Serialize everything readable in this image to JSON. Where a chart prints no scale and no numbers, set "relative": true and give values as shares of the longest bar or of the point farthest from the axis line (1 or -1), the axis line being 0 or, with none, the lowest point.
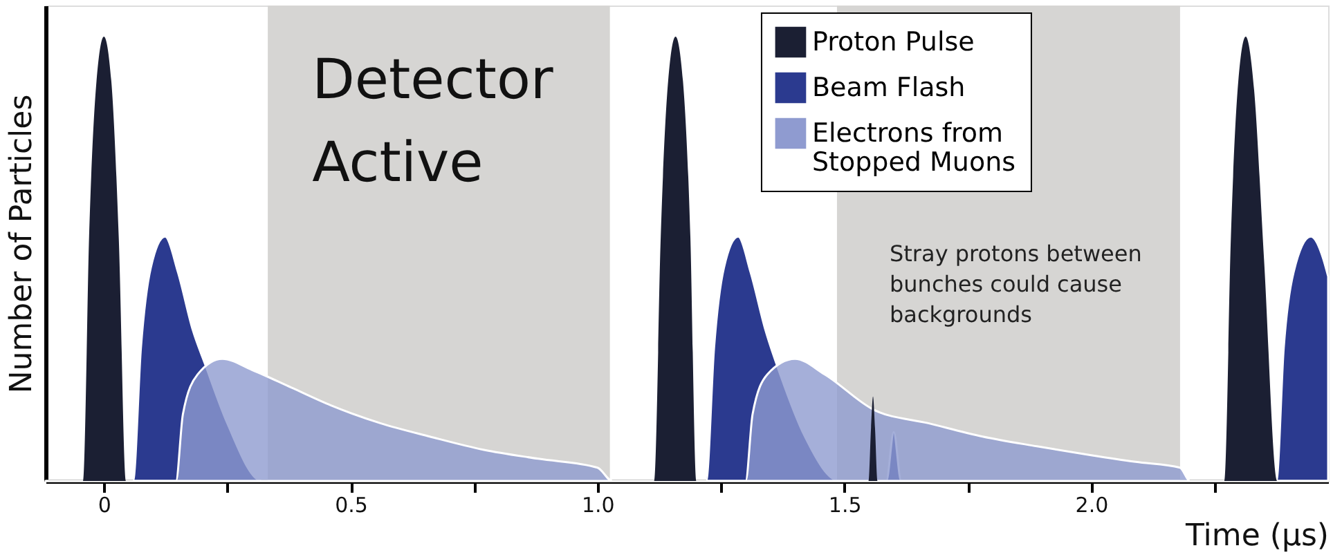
{
  "chart_data": {
    "type": "area",
    "relative": true,
    "xlabel": "Time (µs)",
    "ylabel": "Number of Particles",
    "xlim": [
      -0.118,
      2.48
    ],
    "xticks": [
      0,
      {
        "value": 0.25,
        "label": null
      },
      0.5,
      {
        "value": 0.75,
        "label": null
      },
      {
        "value": 1.0,
        "label": "1.0"
      },
      {
        "value": 1.25,
        "label": null
      },
      1.5,
      {
        "value": 1.75,
        "label": null
      },
      {
        "value": 2.0,
        "label": "2.0"
      },
      {
        "value": 2.25,
        "label": null
      }
    ],
    "tick_labels": "x",
    "grid": false,
    "legend": "top right",
    "series": [
      {
        "name": "Proton Pulse",
        "color": "#1b1f33",
        "x": [
          -0.118,
          -0.042,
          -0.03,
          -0.015,
          0,
          0.015,
          0.03,
          0.045,
          1.115,
          1.128,
          1.143,
          1.158,
          1.173,
          1.188,
          1.2,
          1.549,
          1.554,
          1.558,
          1.562,
          1.567,
          2.27,
          2.283,
          2.298,
          2.313,
          2.33,
          2.35,
          2.377,
          2.48
        ],
        "values": [
          0,
          0,
          0.55,
          0.9,
          1,
          0.9,
          0.55,
          0,
          0,
          0.55,
          0.9,
          1,
          0.9,
          0.55,
          0,
          0,
          0.12,
          0.19,
          0.12,
          0,
          0,
          0.55,
          0.9,
          1,
          0.88,
          0.5,
          0,
          0
        ]
      },
      {
        "name": "Beam Flash",
        "color": "#2b3a8f",
        "x": [
          -0.118,
          0.059,
          0.075,
          0.095,
          0.124,
          0.15,
          0.18,
          0.206,
          0.25,
          0.32,
          1.22,
          1.236,
          1.256,
          1.285,
          1.31,
          1.34,
          1.37,
          1.42,
          1.49,
          1.585,
          1.6,
          1.615,
          2.375,
          2.39,
          2.41,
          2.445,
          2.47,
          2.48
        ],
        "values": [
          0,
          0,
          0.3,
          0.48,
          0.55,
          0.47,
          0.34,
          0.26,
          0.13,
          0,
          0,
          0.3,
          0.48,
          0.55,
          0.47,
          0.34,
          0.24,
          0.1,
          0,
          0,
          0.11,
          0,
          0,
          0.3,
          0.47,
          0.55,
          0.5,
          0.46
        ]
      },
      {
        "name": "Electrons from Stopped Muons",
        "color": "#8f9bd0",
        "x": [
          -0.118,
          0.146,
          0.16,
          0.19,
          0.24,
          0.3,
          0.38,
          0.46,
          0.56,
          0.66,
          0.77,
          0.88,
          1.0,
          1.03,
          1.3,
          1.314,
          1.344,
          1.4,
          1.46,
          1.56,
          1.67,
          1.78,
          1.89,
          2.0,
          2.09,
          2.18,
          2.2,
          2.48
        ],
        "values": [
          0,
          0,
          0.15,
          0.24,
          0.275,
          0.25,
          0.21,
          0.17,
          0.13,
          0.1,
          0.07,
          0.05,
          0.03,
          0,
          0,
          0.15,
          0.24,
          0.275,
          0.24,
          0.16,
          0.13,
          0.1,
          0.078,
          0.058,
          0.043,
          0.03,
          0,
          0
        ]
      }
    ],
    "bands": [
      {
        "axis": "x",
        "from": 0.332,
        "to": 1.025,
        "label": "Detector Active",
        "color": "#d6d5d3"
      },
      {
        "axis": "x",
        "from": 1.485,
        "to": 2.18,
        "color": "#d6d5d3"
      }
    ],
    "annotations": [
      "Stray protons between bunches could cause backgrounds"
    ]
  }
}
